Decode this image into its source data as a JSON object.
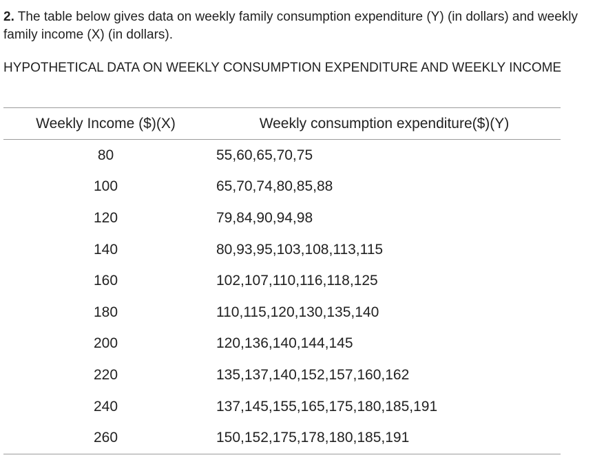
{
  "question": {
    "number": "2.",
    "text": " The table below gives data on weekly family consumption expenditure (Y) (in dollars) and weekly family income (X) (in dollars)."
  },
  "table_title": "HYPOTHETICAL DATA ON WEEKLY CONSUMPTION EXPENDITURE AND WEEKLY INCOME",
  "table": {
    "headers": [
      "Weekly Income ($)(X)",
      "Weekly consumption expenditure($)(Y)"
    ],
    "rows": [
      [
        "80",
        "55,60,65,70,75"
      ],
      [
        "100",
        "65,70,74,80,85,88"
      ],
      [
        "120",
        "79,84,90,94,98"
      ],
      [
        "140",
        "80,93,95,103,108,113,115"
      ],
      [
        "160",
        "102,107,110,116,118,125"
      ],
      [
        "180",
        "110,115,120,130,135,140"
      ],
      [
        "200",
        "120,136,140,144,145"
      ],
      [
        "220",
        "135,137,140,152,157,160,162"
      ],
      [
        "240",
        "137,145,155,165,175,180,185,191"
      ],
      [
        "260",
        "150,152,175,178,180,185,191"
      ]
    ]
  }
}
